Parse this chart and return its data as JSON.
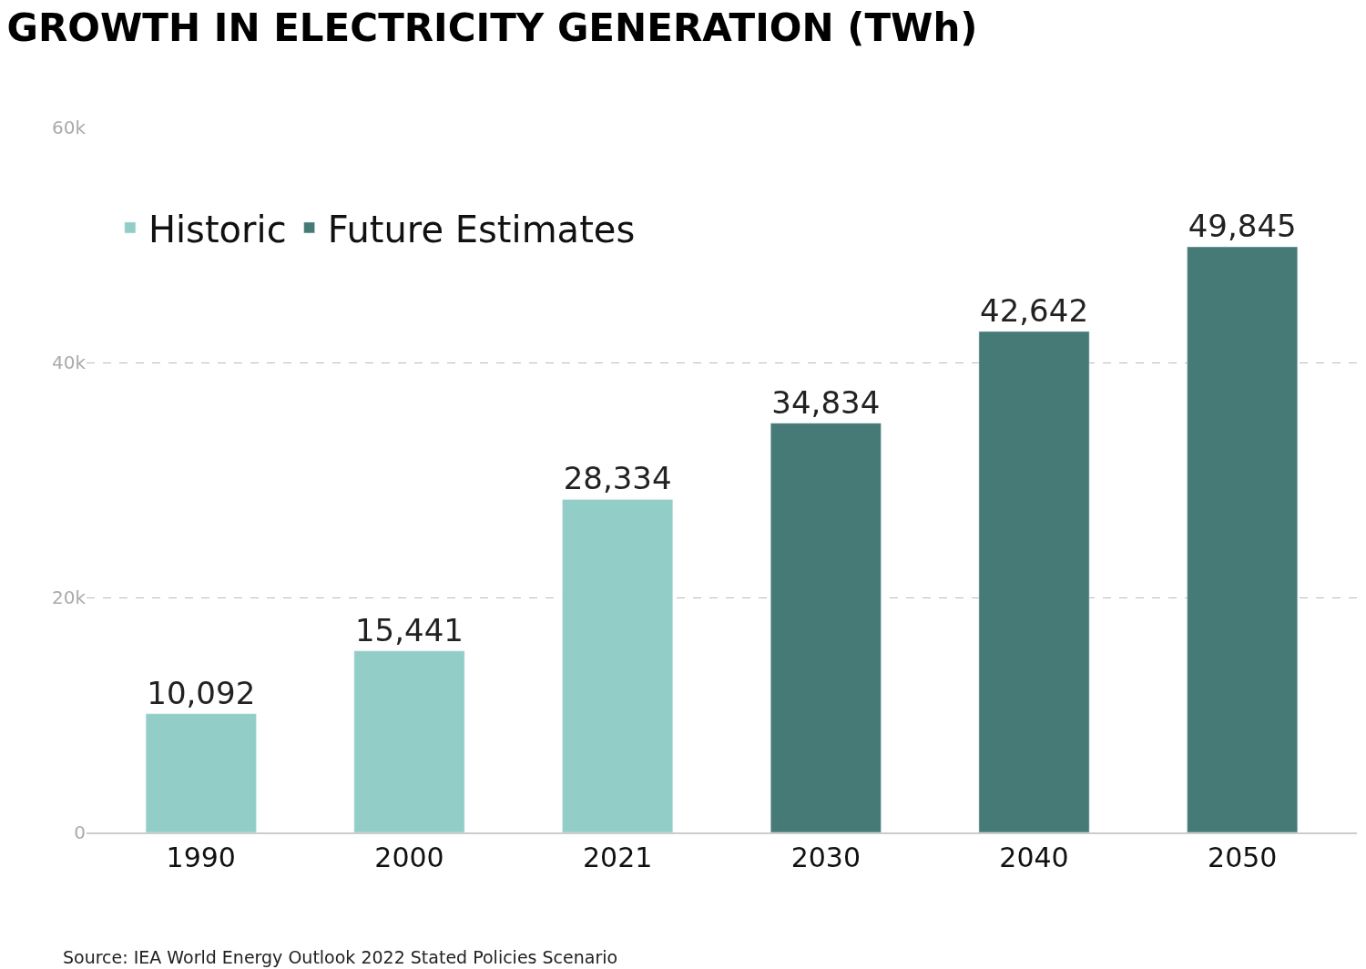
{
  "chart_data": {
    "type": "bar",
    "title": "GROWTH IN ELECTRICITY GENERATION (TWh)",
    "categories": [
      "1990",
      "2000",
      "2021",
      "2030",
      "2040",
      "2050"
    ],
    "series": [
      {
        "name": "Historic",
        "color": "#92cdc8",
        "values": [
          10092,
          15441,
          28334,
          null,
          null,
          null
        ],
        "value_labels": [
          "10,092",
          "15,441",
          "28,334",
          null,
          null,
          null
        ]
      },
      {
        "name": "Future Estimates",
        "color": "#457a77",
        "values": [
          null,
          null,
          null,
          34834,
          42642,
          49845
        ],
        "value_labels": [
          null,
          null,
          null,
          "34,834",
          "42,642",
          "49,845"
        ]
      }
    ],
    "ylim": [
      0,
      60000
    ],
    "yticks": [
      {
        "value": 0,
        "label": "0"
      },
      {
        "value": 20000,
        "label": "20k"
      },
      {
        "value": 40000,
        "label": "40k"
      },
      {
        "value": 60000,
        "label": "60k"
      }
    ],
    "grid": "y",
    "legend": "top left",
    "annotations": [
      "Source: IEA World Energy Outlook 2022 Stated Policies Scenario"
    ]
  }
}
